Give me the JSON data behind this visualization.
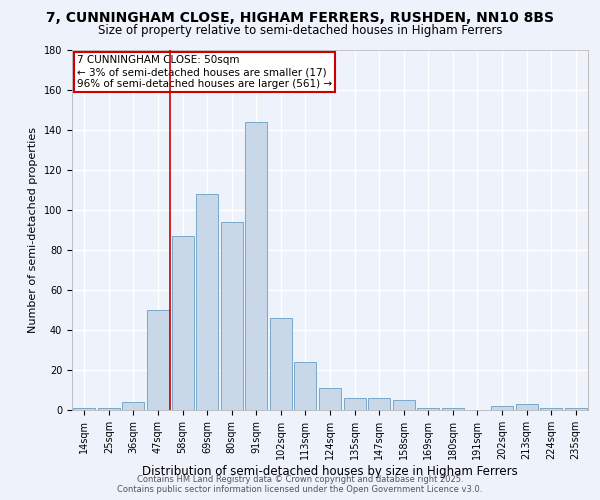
{
  "title_line1": "7, CUNNINGHAM CLOSE, HIGHAM FERRERS, RUSHDEN, NN10 8BS",
  "title_line2": "Size of property relative to semi-detached houses in Higham Ferrers",
  "xlabel": "Distribution of semi-detached houses by size in Higham Ferrers",
  "ylabel": "Number of semi-detached properties",
  "categories": [
    "14sqm",
    "25sqm",
    "36sqm",
    "47sqm",
    "58sqm",
    "69sqm",
    "80sqm",
    "91sqm",
    "102sqm",
    "113sqm",
    "124sqm",
    "135sqm",
    "147sqm",
    "158sqm",
    "169sqm",
    "180sqm",
    "191sqm",
    "202sqm",
    "213sqm",
    "224sqm",
    "235sqm"
  ],
  "values": [
    1,
    1,
    4,
    50,
    87,
    108,
    94,
    144,
    46,
    24,
    11,
    6,
    6,
    5,
    1,
    1,
    0,
    2,
    3,
    1,
    1
  ],
  "bar_color": "#c8d8e8",
  "bar_edge_color": "#7aa8c8",
  "background_color": "#eef2fb",
  "grid_color": "#ffffff",
  "vline_x_idx": 3,
  "vline_color": "#cc0000",
  "annotation_text": "7 CUNNINGHAM CLOSE: 50sqm\n← 3% of semi-detached houses are smaller (17)\n96% of semi-detached houses are larger (561) →",
  "annotation_box_color": "#ffffff",
  "annotation_box_edge": "#cc0000",
  "ylim": [
    0,
    180
  ],
  "yticks": [
    0,
    20,
    40,
    60,
    80,
    100,
    120,
    140,
    160,
    180
  ],
  "footer_line1": "Contains HM Land Registry data © Crown copyright and database right 2025.",
  "footer_line2": "Contains public sector information licensed under the Open Government Licence v3.0.",
  "title_fontsize": 10,
  "subtitle_fontsize": 8.5,
  "xlabel_fontsize": 8.5,
  "ylabel_fontsize": 8,
  "tick_fontsize": 7,
  "footer_fontsize": 6,
  "annotation_fontsize": 7.5
}
